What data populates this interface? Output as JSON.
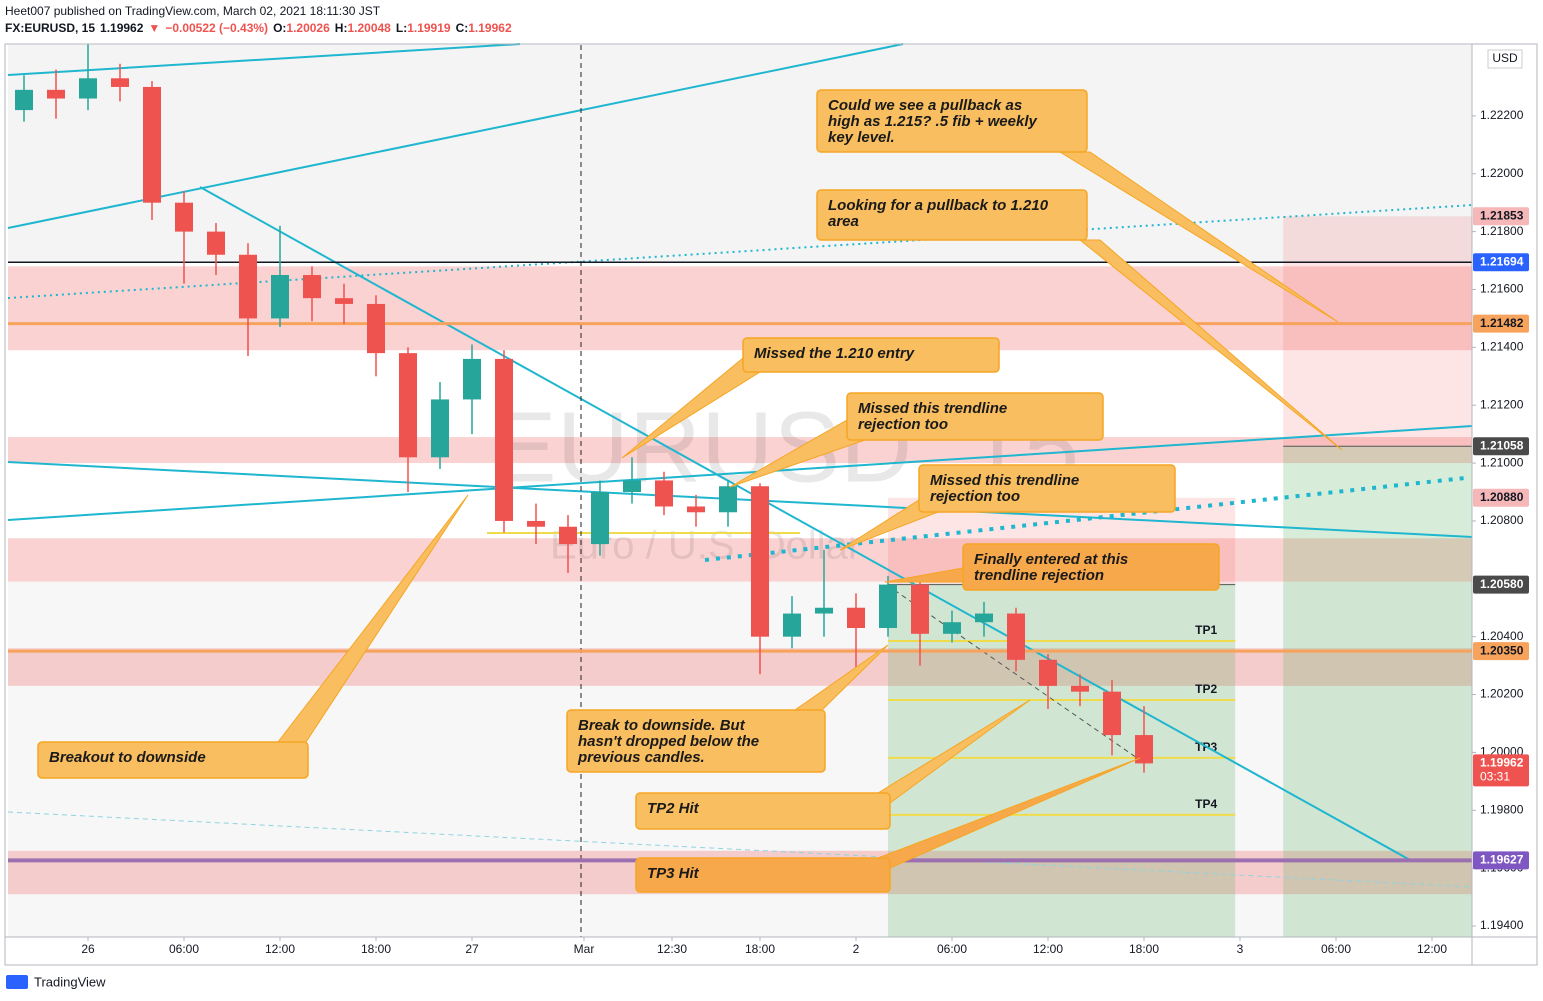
{
  "header": {
    "publisher": "Heet007 published on TradingView.com, March 02, 2021 18:11:30 JST",
    "symbol": "FX:EURUSD, 15",
    "last": "1.19962",
    "arrow": "▼",
    "change": "−0.00522 (−0.43%)",
    "ohlc": [
      {
        "label": "O:",
        "value": "1.20026"
      },
      {
        "label": "H:",
        "value": "1.20048"
      },
      {
        "label": "L:",
        "value": "1.19919"
      },
      {
        "label": "C:",
        "value": "1.19962"
      }
    ]
  },
  "watermark": {
    "symbol": "EURUSD, 15",
    "description": "Euro / U.S. Dollar"
  },
  "currency": "USD",
  "footer": "TradingView",
  "chart_data": {
    "type": "candlestick",
    "up_color": "#26a69a",
    "down_color": "#ef5350",
    "x": [
      1,
      3,
      5,
      7,
      9,
      11,
      13,
      15,
      17,
      19,
      21,
      23,
      25,
      27,
      29,
      31,
      33,
      35,
      37,
      39,
      41,
      43,
      45,
      47,
      49,
      51,
      53,
      55,
      57,
      59,
      61,
      63,
      65,
      67,
      69,
      71
    ],
    "open": [
      1.2222,
      1.2229,
      1.2226,
      1.2233,
      1.223,
      1.219,
      1.218,
      1.2172,
      1.215,
      1.2165,
      1.2157,
      1.2155,
      1.2138,
      1.2102,
      1.2122,
      1.2136,
      1.208,
      1.2078,
      1.2072,
      1.209,
      1.2094,
      1.2085,
      1.2083,
      1.2092,
      1.204,
      1.2048,
      1.205,
      1.2043,
      1.2058,
      1.2041,
      1.2045,
      1.2048,
      1.2032,
      1.2023,
      1.2021,
      1.2006
    ],
    "high": [
      1.2234,
      1.2236,
      1.2245,
      1.2238,
      1.2232,
      1.2194,
      1.2183,
      1.2176,
      1.2182,
      1.2168,
      1.2162,
      1.2158,
      1.214,
      1.2128,
      1.2141,
      1.2139,
      1.2086,
      1.2082,
      1.2094,
      1.2102,
      1.2097,
      1.2089,
      1.2094,
      1.2093,
      1.2054,
      1.207,
      1.2055,
      1.2061,
      1.206,
      1.2049,
      1.2052,
      1.205,
      1.2034,
      1.2027,
      1.2025,
      1.2016
    ],
    "low": [
      1.2218,
      1.2219,
      1.2222,
      1.2225,
      1.2184,
      1.2162,
      1.2165,
      1.2137,
      1.2147,
      1.2149,
      1.2148,
      1.213,
      1.209,
      1.2098,
      1.211,
      1.2076,
      1.2072,
      1.2062,
      1.2068,
      1.2086,
      1.2082,
      1.2078,
      1.2078,
      1.2027,
      1.2036,
      1.204,
      1.2028,
      1.204,
      1.203,
      1.2038,
      1.204,
      1.2028,
      1.2015,
      1.2016,
      1.1999,
      1.1993
    ],
    "close": [
      1.2229,
      1.2226,
      1.2233,
      1.223,
      1.219,
      1.218,
      1.2172,
      1.215,
      1.2165,
      1.2157,
      1.2155,
      1.2138,
      1.2102,
      1.2122,
      1.2136,
      1.208,
      1.2078,
      1.2072,
      1.209,
      1.2094,
      1.2085,
      1.2083,
      1.2092,
      1.204,
      1.2048,
      1.205,
      1.2043,
      1.2058,
      1.2041,
      1.2045,
      1.2048,
      1.2032,
      1.2023,
      1.2021,
      1.2006,
      1.19962
    ],
    "xlim": [
      0,
      91.5
    ],
    "ylim": [
      1.19362,
      1.22445
    ],
    "xticks": [
      {
        "value": 5,
        "label": "26"
      },
      {
        "value": 11,
        "label": "06:00"
      },
      {
        "value": 17,
        "label": "12:00"
      },
      {
        "value": 23,
        "label": "18:00"
      },
      {
        "value": 29,
        "label": "27"
      },
      {
        "value": 36,
        "label": "Mar"
      },
      {
        "value": 41.5,
        "label": "12:30"
      },
      {
        "value": 47,
        "label": "18:00"
      },
      {
        "value": 53,
        "label": "2"
      },
      {
        "value": 59,
        "label": "06:00"
      },
      {
        "value": 65,
        "label": "12:00"
      },
      {
        "value": 71,
        "label": "18:00"
      },
      {
        "value": 77,
        "label": "3"
      },
      {
        "value": 83,
        "label": "06:00"
      },
      {
        "value": 89,
        "label": "12:00"
      }
    ],
    "yticks": [
      {
        "value": 1.194,
        "label": "1.19400"
      },
      {
        "value": 1.196,
        "label": "1.19600"
      },
      {
        "value": 1.198,
        "label": "1.19800"
      },
      {
        "value": 1.2,
        "label": "1.20000"
      },
      {
        "value": 1.202,
        "label": "1.20200"
      },
      {
        "value": 1.204,
        "label": "1.20400"
      },
      {
        "value": 1.208,
        "label": "1.20800"
      },
      {
        "value": 1.21,
        "label": "1.21000"
      },
      {
        "value": 1.212,
        "label": "1.21200"
      },
      {
        "value": 1.214,
        "label": "1.21400"
      },
      {
        "value": 1.216,
        "label": "1.21600"
      },
      {
        "value": 1.218,
        "label": "1.21800"
      },
      {
        "value": 1.22,
        "label": "1.22000"
      },
      {
        "value": 1.222,
        "label": "1.22200"
      }
    ],
    "zones": [
      [
        1.2139,
        1.2168
      ],
      [
        1.21,
        1.2109
      ],
      [
        1.2059,
        1.2074
      ],
      [
        1.2023,
        1.2036
      ],
      [
        1.1951,
        1.1966
      ]
    ],
    "zone_color": "rgba(239,83,80,0.26)",
    "positions": [
      {
        "x": [
          55,
          76.7
        ],
        "entry": 1.2058,
        "stop": 1.2088
      },
      {
        "x": [
          79.7,
          91.5
        ],
        "entry": 1.21058,
        "stop": 1.21853
      }
    ],
    "targets": [
      {
        "label": "TP1",
        "value": 1.20385
      },
      {
        "label": "TP2",
        "value": 1.20181
      },
      {
        "label": "TP3",
        "value": 1.19981
      },
      {
        "label": "TP4",
        "value": 1.19784
      }
    ],
    "target_range": [
      55,
      76.7
    ],
    "levels": [
      {
        "value": 1.21853,
        "label": "1.21853",
        "color": "#f5b7b7",
        "text_color": "#131722"
      },
      {
        "value": 1.21694,
        "label": "1.21694",
        "color": "#2962ff",
        "text_color": "#ffffff",
        "line_color": "#131722",
        "line_width": 1.5
      },
      {
        "value": 1.21482,
        "label": "1.21482",
        "color": "#f7a35c",
        "text_color": "#131722",
        "line_color": "#f7a35c",
        "line_width": 3
      },
      {
        "value": 1.21058,
        "label": "1.21058",
        "color": "#4a4a4a",
        "text_color": "#ffffff"
      },
      {
        "value": 1.2088,
        "label": "1.20880",
        "color": "#f5b7b7",
        "text_color": "#131722"
      },
      {
        "value": 1.2058,
        "label": "1.20580",
        "color": "#4a4a4a",
        "text_color": "#ffffff"
      },
      {
        "value": 1.2035,
        "label": "1.20350",
        "color": "#f7a35c",
        "text_color": "#131722",
        "line_color": "#f7a35c",
        "line_width": 3
      },
      {
        "value": 1.19962,
        "label": "1.19962",
        "sub_label": "03:31",
        "color": "#ef5350",
        "text_color": "#ffffff"
      },
      {
        "value": 1.19627,
        "label": "1.19627",
        "color": "#7e57c2",
        "text_color": "#ffffff",
        "line_color": "#9c6fb0",
        "line_width": 4
      }
    ]
  },
  "annotations": [
    {
      "lines": [
        "Could we see a pullback as",
        "high as 1.215?  .5 fib + weekly",
        "key level."
      ]
    },
    {
      "lines": [
        "Looking for a pullback to 1.210",
        "area"
      ]
    },
    {
      "lines": [
        "Missed the 1.210 entry"
      ]
    },
    {
      "lines": [
        "Missed this trendline",
        "rejection too"
      ]
    },
    {
      "lines": [
        "Missed this trendline",
        "rejection too"
      ]
    },
    {
      "lines": [
        "Finally entered at this",
        "trendline rejection"
      ]
    },
    {
      "lines": [
        "Break to downside.  But",
        "hasn't dropped below the",
        "previous candles."
      ]
    },
    {
      "lines": [
        "Breakout to downside"
      ]
    },
    {
      "lines": [
        "TP2 Hit"
      ]
    },
    {
      "lines": [
        "TP3 Hit"
      ]
    }
  ]
}
